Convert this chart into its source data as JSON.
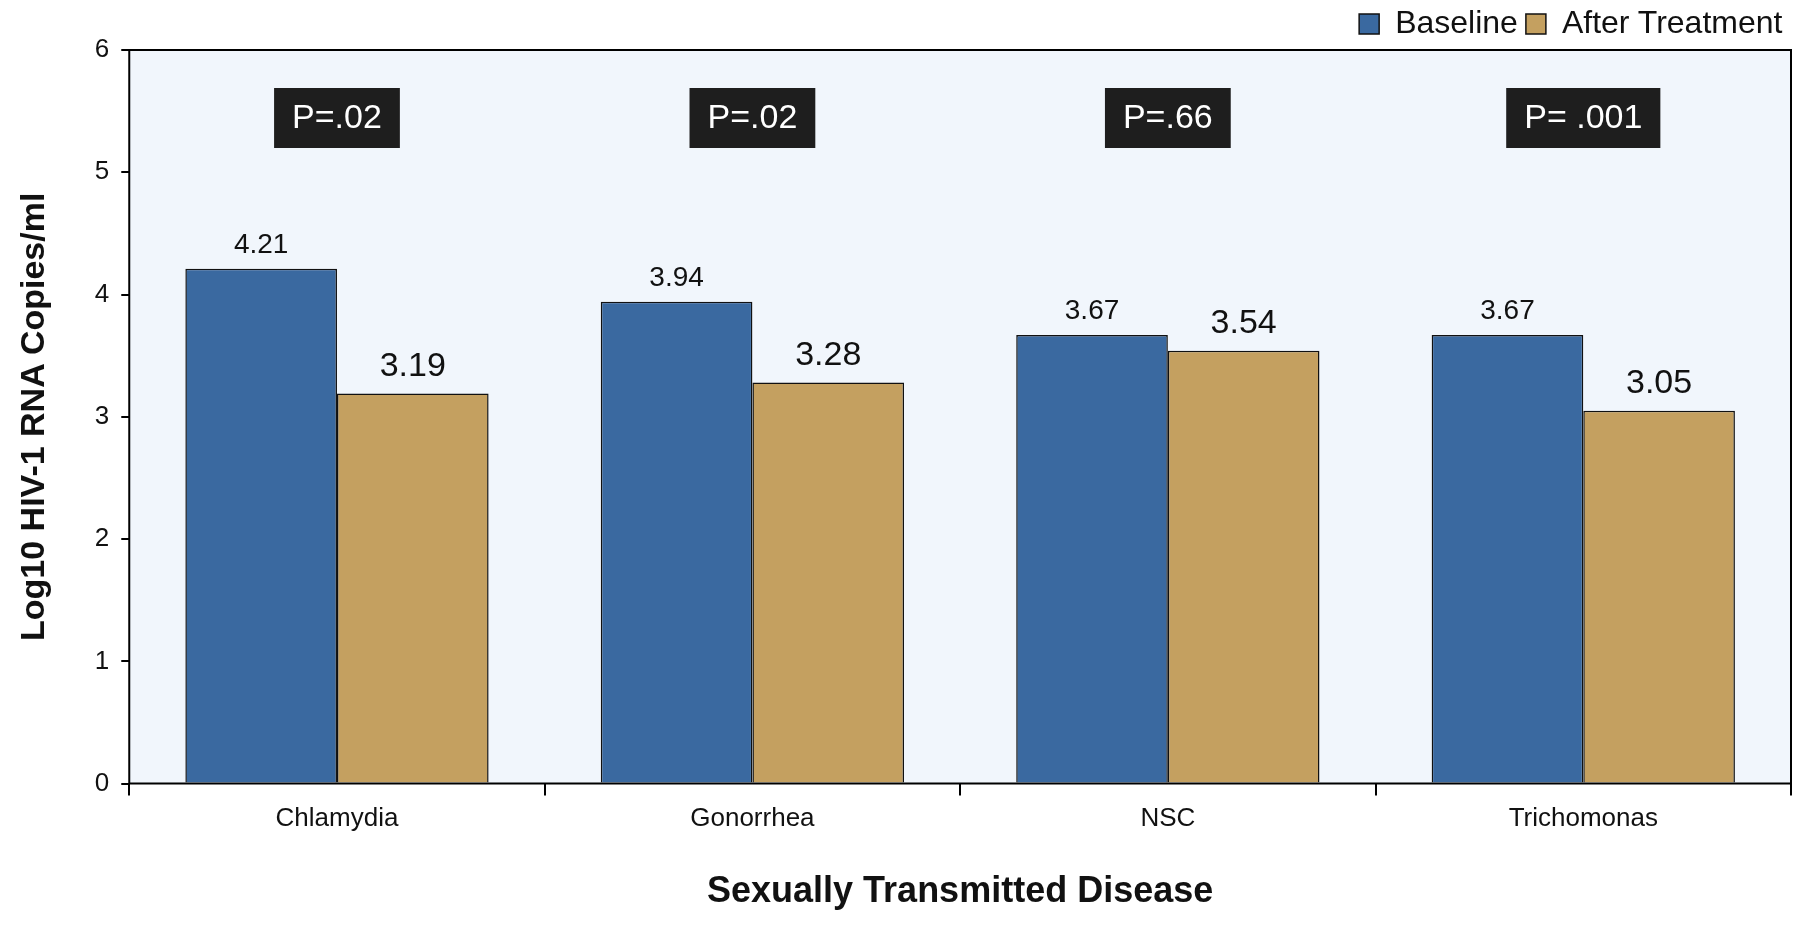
{
  "chart_data": {
    "type": "bar",
    "xlabel": "Sexually Transmitted Disease",
    "ylabel": "Log10 HIV-1 RNA Copies/ml",
    "categories": [
      "Chlamydia",
      "Gonorrhea",
      "NSC",
      "Trichomonas"
    ],
    "series": [
      {
        "name": "Baseline",
        "color": "#3a69a0",
        "values": [
          4.21,
          3.94,
          3.67,
          3.67
        ]
      },
      {
        "name": "After Treatment",
        "color": "#c4a060",
        "values": [
          3.19,
          3.28,
          3.54,
          3.05
        ]
      }
    ],
    "ylim": [
      0,
      6
    ],
    "yticks": [
      0,
      1,
      2,
      3,
      4,
      5,
      6
    ],
    "grid": false,
    "legend": "top right",
    "data_labels": true,
    "annotations": [
      "P=.02",
      "P=.02",
      "P=.66",
      "P= .001"
    ]
  }
}
